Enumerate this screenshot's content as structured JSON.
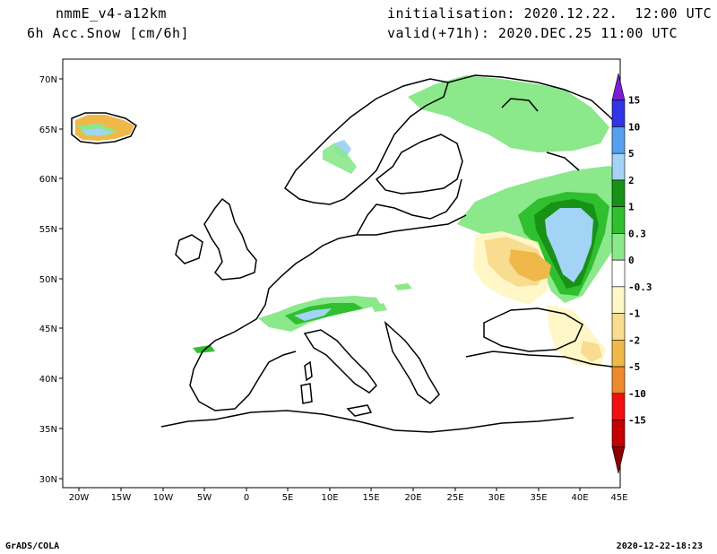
{
  "header": {
    "model": "nmmE_v4-a12km",
    "field": "6h Acc.Snow [cm/6h]",
    "init": "initialisation: 2020.12.22.  12:00 UTC",
    "valid": "valid(+71h): 2020.DEC.25 11:00 UTC"
  },
  "footer": {
    "left": "GrADS/COLA",
    "right": "2020-12-22-18:23"
  },
  "axes": {
    "lon_labels": [
      "20W",
      "15W",
      "10W",
      "5W",
      "0",
      "5E",
      "10E",
      "15E",
      "20E",
      "25E",
      "30E",
      "35E",
      "40E",
      "45E"
    ],
    "lat_labels": [
      "70N",
      "65N",
      "60N",
      "55N",
      "50N",
      "45N",
      "40N",
      "35N",
      "30N"
    ]
  },
  "colorbar": {
    "labels": [
      "15",
      "10",
      "5",
      "2",
      "1",
      "0.3",
      "0",
      "-0.3",
      "-1",
      "-2",
      "-5",
      "-10",
      "-15"
    ],
    "colors": [
      "#7a1fd6",
      "#2f35e6",
      "#56a0ee",
      "#a3d3f5",
      "#179217",
      "#2fbf2f",
      "#8be88b",
      "#ffffff",
      "#fff7c8",
      "#f8dc8f",
      "#f0b848",
      "#ee8a2e",
      "#f01010",
      "#c40000",
      "#8c0000"
    ]
  },
  "map_colors": {
    "land_border": "#000000",
    "green_light": "#8be88b",
    "green_mid": "#2fbf2f",
    "green_dark": "#179217",
    "blue_light": "#a3d3f5",
    "orange": "#f0b848",
    "orange_dark": "#ee8a2e",
    "yellow": "#fff7c8"
  }
}
